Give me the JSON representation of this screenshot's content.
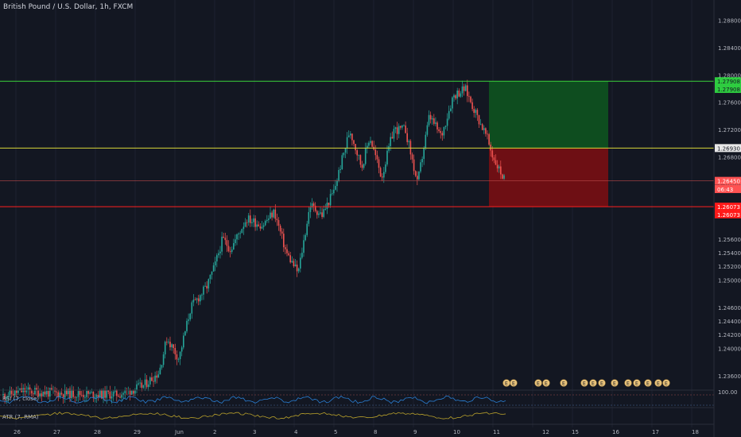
{
  "chart_title": "British Pound / U.S. Dollar, 1h, FXCM",
  "price_axis": {
    "ticks": [
      "1.28800",
      "1.28400",
      "1.28000",
      "1.27600",
      "1.27200",
      "1.26800",
      "1.26400",
      "1.26000",
      "1.25600",
      "1.25400",
      "1.25200",
      "1.25000",
      "1.24600",
      "1.24400",
      "1.24200",
      "1.24000",
      "1.23600"
    ],
    "scale_min": 1.234,
    "scale_max": 1.2898
  },
  "price_tags": [
    {
      "label": "1.27908",
      "color": "#2ecc40",
      "text_color": "#131722",
      "value": 1.27908
    },
    {
      "label": "1.27908",
      "color": "#2ecc40",
      "text_color": "#131722",
      "value": 1.27795
    },
    {
      "label": "1.26930",
      "color": "#e8e8e8",
      "text_color": "#131722",
      "value": 1.2693
    },
    {
      "label": "1.26450",
      "color": "#ff5252",
      "text_color": "#ffffff",
      "value": 1.2645
    },
    {
      "label": "06:43",
      "color": "#ff5252",
      "text_color": "#ffffff",
      "value": 1.2633
    },
    {
      "label": "1.26073",
      "color": "#ff1a1a",
      "text_color": "#ffffff",
      "value": 1.26073
    },
    {
      "label": "1.26073",
      "color": "#ff1a1a",
      "text_color": "#ffffff",
      "value": 1.2596
    }
  ],
  "levels": {
    "target": 1.27908,
    "entry": 1.2693,
    "current": 1.2645,
    "stop": 1.26073
  },
  "position": {
    "entry": 1.2693,
    "target": 1.27908,
    "stop": 1.26073
  },
  "time_axis": [
    "26",
    "27",
    "28",
    "29",
    "Jun",
    "2",
    "3",
    "4",
    "5",
    "8",
    "9",
    "10",
    "11",
    "12",
    "15",
    "16",
    "17",
    "18"
  ],
  "rsi": {
    "label": "RSI (7, close)",
    "level_text": "100.00"
  },
  "atr": {
    "label": "ATR (7, RMA)"
  },
  "event_markers": [
    "E",
    "E",
    "E",
    "E",
    "E",
    "E",
    "E",
    "E",
    "E",
    "E",
    "E",
    "E",
    "E",
    "E",
    "E",
    "E"
  ],
  "colors": {
    "up": "#26a69a",
    "down": "#ef5350",
    "bg": "#131722",
    "green_zone": "#0e4d1f",
    "red_zone": "#6e0f14",
    "rsi": "#2a7fd4",
    "atr": "#b8a02b"
  }
}
